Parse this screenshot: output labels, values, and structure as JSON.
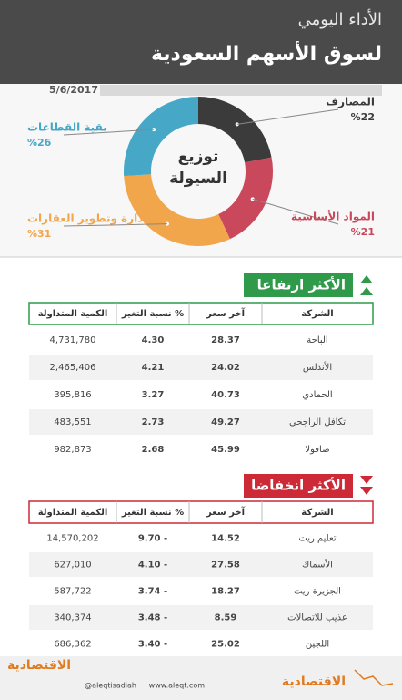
{
  "header": {
    "title": "الأداء اليومي",
    "subtitle": "لسوق الأسهم السعودية"
  },
  "date": "5/6/2017",
  "chart_data": {
    "type": "pie",
    "title": "توزيع السيولة",
    "categories": [
      "المصارف",
      "المواد الأساسية",
      "إدارة وتطوير العقارات",
      "بقية القطاعات"
    ],
    "values": [
      22,
      21,
      31,
      26
    ],
    "value_labels": [
      "%22",
      "%21",
      "%31",
      "%26"
    ],
    "colors": [
      "#3b3b3b",
      "#c9485b",
      "#f2a64c",
      "#47a7c6"
    ]
  },
  "tables": [
    {
      "title": "الأكثر ارتفاعا",
      "color": "#2e9a4a",
      "columns": [
        "الشركة",
        "آخر سعر",
        "نسبة التغير %",
        "الكمية المتداولة"
      ],
      "rows": [
        [
          "الباحة",
          "28.37",
          "4.30",
          "4,731,780"
        ],
        [
          "الأندلس",
          "24.02",
          "4.21",
          "2,465,406"
        ],
        [
          "الحمادي",
          "40.73",
          "3.27",
          "395,816"
        ],
        [
          "تكافل الراجحي",
          "49.27",
          "2.73",
          "483,551"
        ],
        [
          "صافولا",
          "45.99",
          "2.68",
          "982,873"
        ]
      ]
    },
    {
      "title": "الأكثر انخفاضا",
      "color": "#cc2a36",
      "columns": [
        "الشركة",
        "آخر سعر",
        "نسبة التغير %",
        "الكمية المتداولة"
      ],
      "rows": [
        [
          "تعليم ريت",
          "14.52",
          "9.70 -",
          "14,570,202"
        ],
        [
          "الأسماك",
          "27.58",
          "4.10 -",
          "627,010"
        ],
        [
          "الجزيرة ريت",
          "18.27",
          "3.74 -",
          "587,722"
        ],
        [
          "عذيب للاتصالات",
          "8.59",
          "3.48 -",
          "340,374"
        ],
        [
          "اللجين",
          "25.02",
          "3.40 -",
          "686,362"
        ]
      ]
    }
  ],
  "footer": {
    "twitter": "@aleqtisadiah",
    "website": "www.aleqt.com",
    "logo": "الاقتصادية"
  }
}
